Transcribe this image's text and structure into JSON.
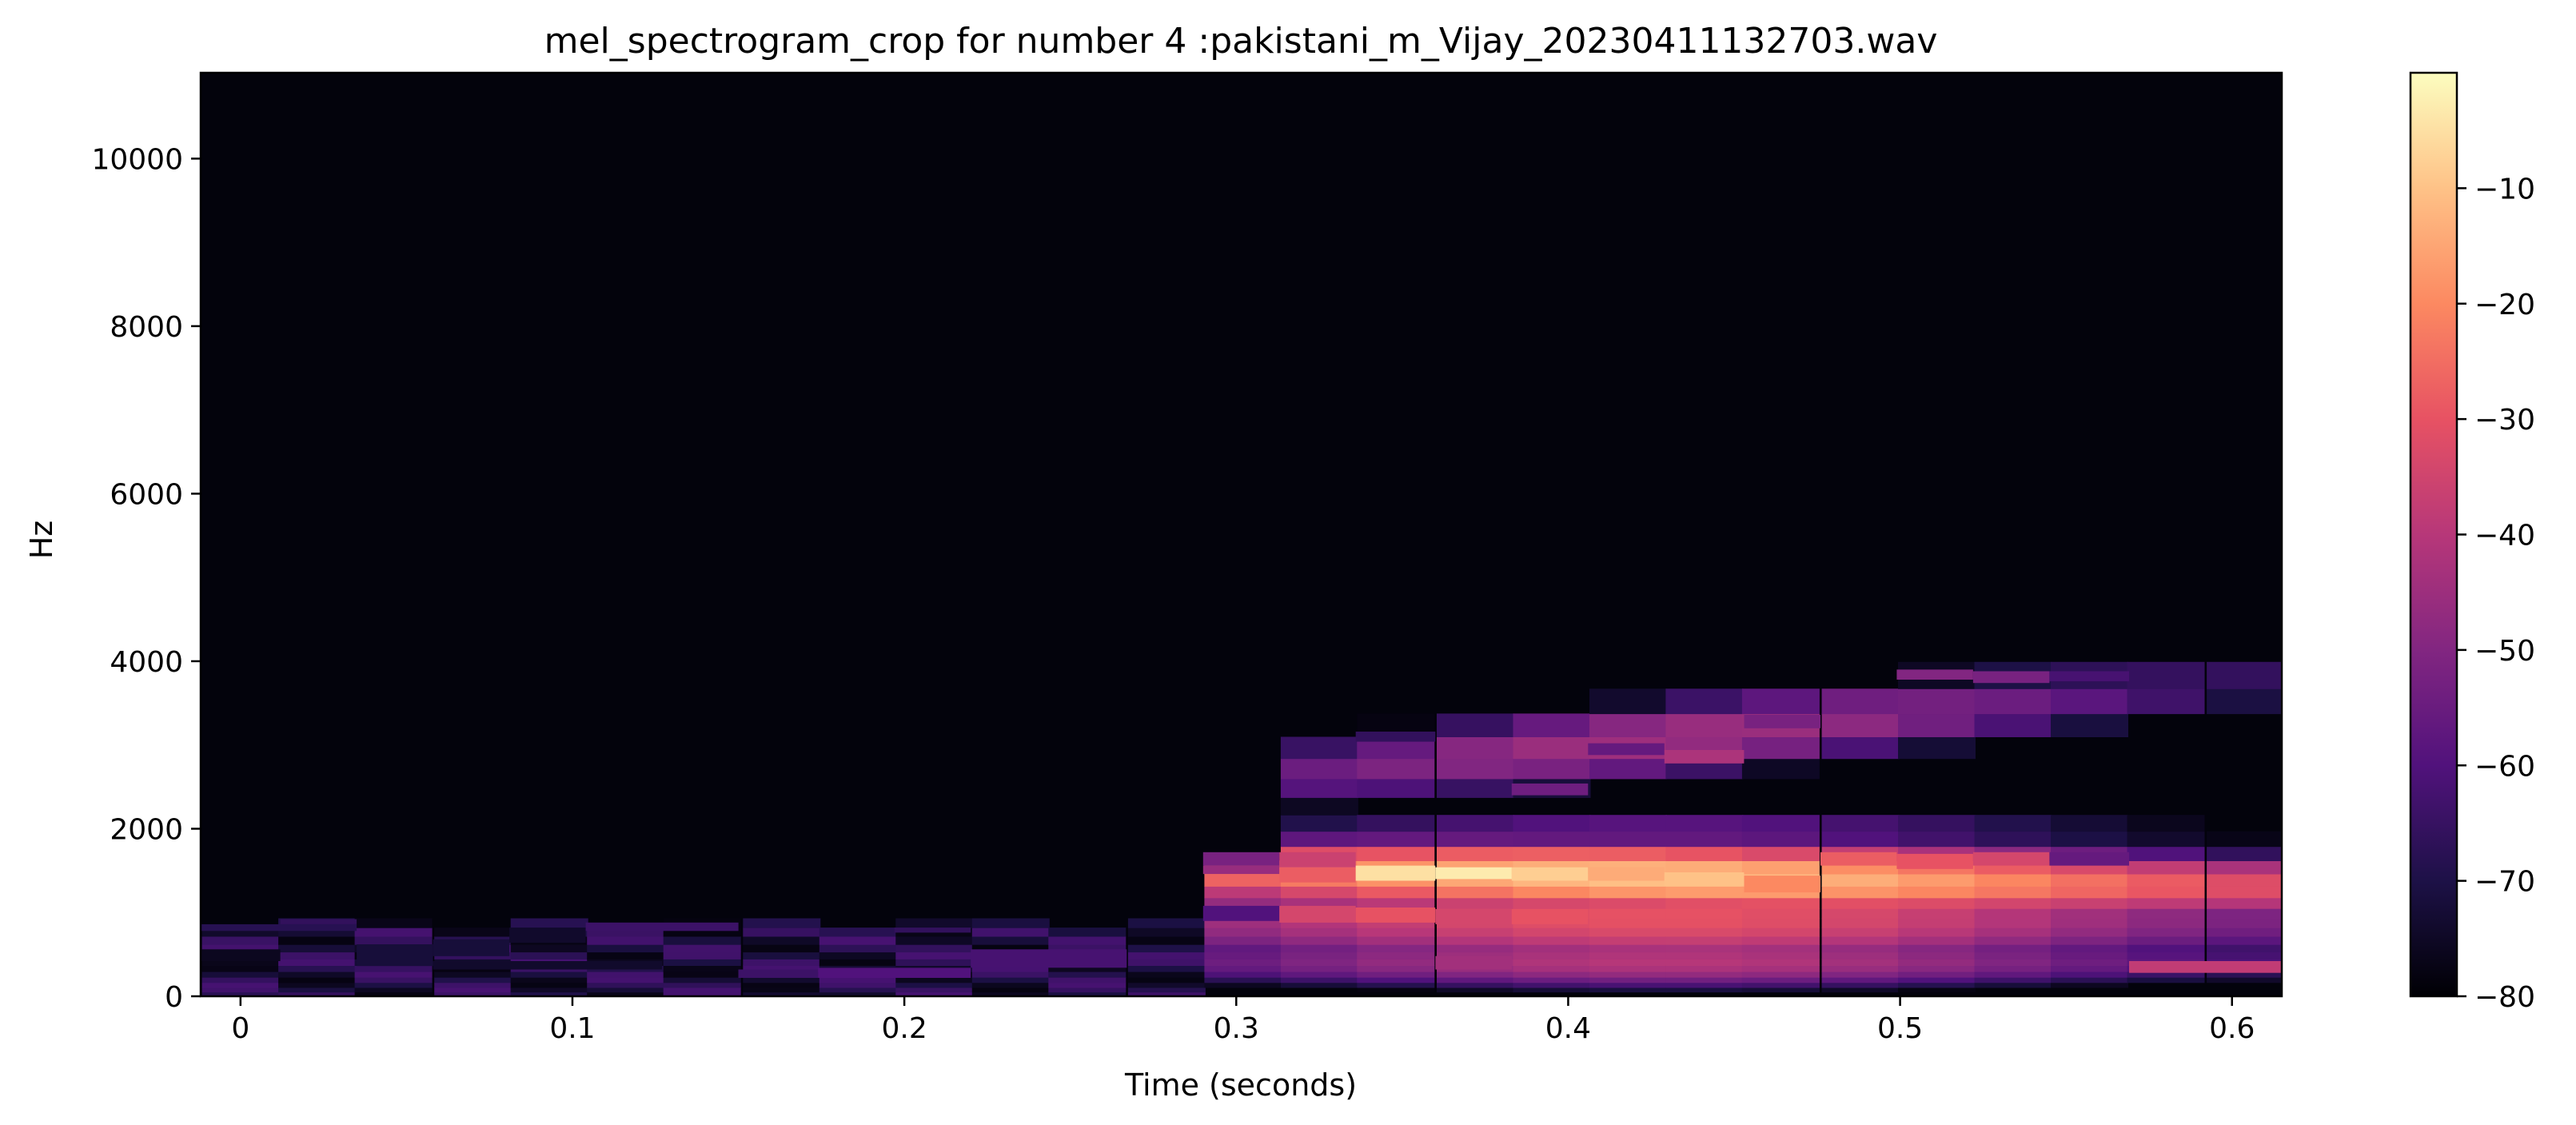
{
  "chart_data": {
    "type": "heatmap",
    "title": "mel_spectrogram_crop for number 4 :pakistani_m_Vijay_20230411132703.wav",
    "xlabel": "Time (seconds)",
    "ylabel": "Hz",
    "xlim": [
      -0.012,
      0.615
    ],
    "ylim": [
      0,
      11025
    ],
    "x_ticks": [
      0,
      0.1,
      0.2,
      0.3,
      0.4,
      0.5,
      0.6
    ],
    "x_tick_labels": [
      "0",
      "0.1",
      "0.2",
      "0.3",
      "0.4",
      "0.5",
      "0.6"
    ],
    "y_ticks": [
      0,
      2000,
      4000,
      6000,
      8000,
      10000
    ],
    "y_tick_labels": [
      "0",
      "2000",
      "4000",
      "6000",
      "8000",
      "10000"
    ],
    "colorbar": {
      "range": [
        -80,
        0
      ],
      "ticks": [
        -10,
        -20,
        -30,
        -40,
        -50,
        -60,
        -70,
        -80
      ],
      "tick_labels": [
        "−10",
        "−20",
        "−30",
        "−40",
        "−50",
        "−60",
        "−70",
        "−80"
      ],
      "colormap": "magma"
    },
    "frame_times": [
      0.0,
      0.023,
      0.046,
      0.07,
      0.093,
      0.116,
      0.139,
      0.163,
      0.186,
      0.209,
      0.232,
      0.255,
      0.279,
      0.302,
      0.325,
      0.348,
      0.372,
      0.395,
      0.418,
      0.441,
      0.464,
      0.488,
      0.511,
      0.534,
      0.557,
      0.58,
      0.604
    ],
    "floor_db": -80,
    "cells": [
      {
        "t0": -0.012,
        "t1": 0.035,
        "f0": 780,
        "f1": 860,
        "db": -68
      },
      {
        "t0": 0.012,
        "t1": 0.035,
        "f0": 860,
        "f1": 920,
        "db": -66
      },
      {
        "t0": -0.012,
        "t1": 0.012,
        "f0": 420,
        "f1": 560,
        "db": -76
      },
      {
        "t0": 0.035,
        "t1": 0.058,
        "f0": 360,
        "f1": 620,
        "db": -72
      },
      {
        "t0": 0.058,
        "t1": 0.081,
        "f0": 480,
        "f1": 680,
        "db": -72
      },
      {
        "t0": 0.081,
        "t1": 0.104,
        "f0": 640,
        "f1": 820,
        "db": -74
      },
      {
        "t0": 0.104,
        "t1": 0.15,
        "f0": 780,
        "f1": 880,
        "db": -64
      },
      {
        "t0": 0.058,
        "t1": 0.127,
        "f0": 320,
        "f1": 420,
        "db": -74
      },
      {
        "t0": 0.15,
        "t1": 0.174,
        "f0": 220,
        "f1": 320,
        "db": -64
      },
      {
        "t0": 0.174,
        "t1": 0.22,
        "f0": 220,
        "f1": 340,
        "db": -60
      },
      {
        "t0": 0.197,
        "t1": 0.22,
        "f0": 760,
        "f1": 820,
        "db": -66
      },
      {
        "t0": 0.22,
        "t1": 0.267,
        "f0": 340,
        "f1": 560,
        "db": -62
      },
      {
        "t0": 0.29,
        "t1": 0.313,
        "f0": 1460,
        "f1": 1560,
        "db": -46
      },
      {
        "t0": 0.29,
        "t1": 0.313,
        "f0": 1560,
        "f1": 1720,
        "db": -52
      },
      {
        "t0": 0.29,
        "t1": 0.313,
        "f0": 900,
        "f1": 1080,
        "db": -60
      },
      {
        "t0": 0.313,
        "t1": 0.336,
        "f0": 1360,
        "f1": 1540,
        "db": -28
      },
      {
        "t0": 0.313,
        "t1": 0.336,
        "f0": 1540,
        "f1": 1720,
        "db": -36
      },
      {
        "t0": 0.313,
        "t1": 0.336,
        "f0": 880,
        "f1": 1080,
        "db": -34
      },
      {
        "t0": 0.336,
        "t1": 0.36,
        "f0": 1380,
        "f1": 1560,
        "db": -5
      },
      {
        "t0": 0.336,
        "t1": 0.36,
        "f0": 880,
        "f1": 1060,
        "db": -30
      },
      {
        "t0": 0.336,
        "t1": 0.36,
        "f0": 3040,
        "f1": 3160,
        "db": -66
      },
      {
        "t0": 0.36,
        "t1": 0.383,
        "f0": 1400,
        "f1": 1540,
        "db": -3
      },
      {
        "t0": 0.36,
        "t1": 0.383,
        "f0": 860,
        "f1": 1040,
        "db": -34
      },
      {
        "t0": 0.36,
        "t1": 0.383,
        "f0": 320,
        "f1": 480,
        "db": -44
      },
      {
        "t0": 0.383,
        "t1": 0.406,
        "f0": 1380,
        "f1": 1540,
        "db": -8
      },
      {
        "t0": 0.383,
        "t1": 0.406,
        "f0": 860,
        "f1": 1040,
        "db": -30
      },
      {
        "t0": 0.383,
        "t1": 0.406,
        "f0": 2400,
        "f1": 2540,
        "db": -54
      },
      {
        "t0": 0.406,
        "t1": 0.429,
        "f0": 1380,
        "f1": 1540,
        "db": -14
      },
      {
        "t0": 0.406,
        "t1": 0.429,
        "f0": 2880,
        "f1": 3020,
        "db": -56
      },
      {
        "t0": 0.429,
        "t1": 0.453,
        "f0": 1320,
        "f1": 1480,
        "db": -10
      },
      {
        "t0": 0.429,
        "t1": 0.453,
        "f0": 2780,
        "f1": 2940,
        "db": -42
      },
      {
        "t0": 0.453,
        "t1": 0.476,
        "f0": 1240,
        "f1": 1440,
        "db": -20
      },
      {
        "t0": 0.453,
        "t1": 0.476,
        "f0": 3200,
        "f1": 3360,
        "db": -52
      },
      {
        "t0": 0.476,
        "t1": 0.499,
        "f0": 1560,
        "f1": 1720,
        "db": -28
      },
      {
        "t0": 0.499,
        "t1": 0.522,
        "f0": 1520,
        "f1": 1700,
        "db": -30
      },
      {
        "t0": 0.499,
        "t1": 0.522,
        "f0": 3780,
        "f1": 3900,
        "db": -50
      },
      {
        "t0": 0.522,
        "t1": 0.545,
        "f0": 1560,
        "f1": 1720,
        "db": -34
      },
      {
        "t0": 0.522,
        "t1": 0.545,
        "f0": 3740,
        "f1": 3880,
        "db": -52
      },
      {
        "t0": 0.545,
        "t1": 0.569,
        "f0": 3760,
        "f1": 3880,
        "db": -62
      },
      {
        "t0": 0.545,
        "t1": 0.569,
        "f0": 1560,
        "f1": 1720,
        "db": -56
      },
      {
        "t0": 0.569,
        "t1": 0.615,
        "f0": 280,
        "f1": 420,
        "db": -38
      }
    ]
  }
}
